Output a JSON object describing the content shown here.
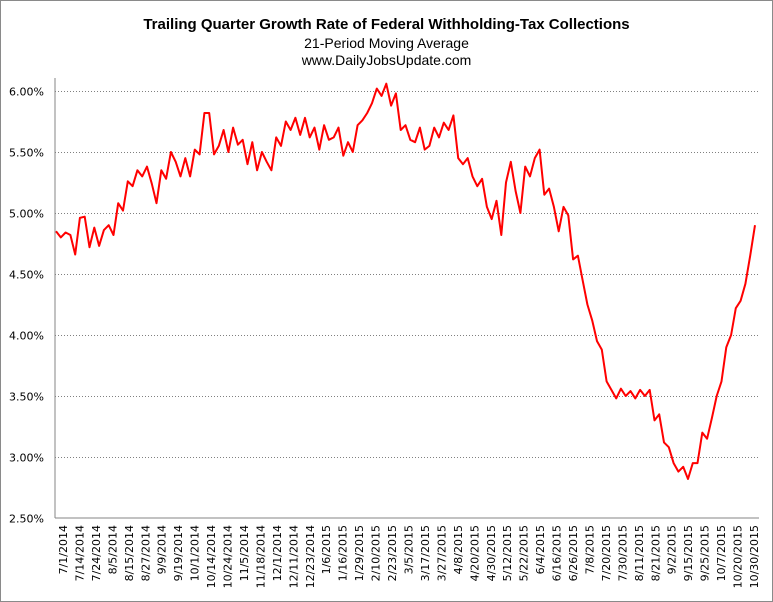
{
  "chart_data": {
    "type": "line",
    "title": "Trailing Quarter Growth Rate of Federal  Withholding-Tax Collections",
    "subtitle": "21-Period Moving Average",
    "source": "www.DailyJobsUpdate.com",
    "xlabel": "",
    "ylabel": "",
    "ylim": [
      2.5,
      6.0
    ],
    "y_ticks": [
      "2.50%",
      "3.00%",
      "3.50%",
      "4.00%",
      "4.50%",
      "5.00%",
      "5.50%",
      "6.00%"
    ],
    "y_tick_values": [
      2.5,
      3.0,
      3.5,
      4.0,
      4.5,
      5.0,
      5.5,
      6.0
    ],
    "grid": "horizontal-dotted",
    "x_ticks": [
      "7/1/2014",
      "7/14/2014",
      "7/24/2014",
      "8/5/2014",
      "8/15/2014",
      "8/27/2014",
      "9/9/2014",
      "9/19/2014",
      "10/1/2014",
      "10/14/2014",
      "10/24/2014",
      "11/5/2014",
      "11/18/2014",
      "12/1/2014",
      "12/11/2014",
      "12/23/2014",
      "1/6/2015",
      "1/16/2015",
      "1/29/2015",
      "2/10/2015",
      "2/23/2015",
      "3/5/2015",
      "3/17/2015",
      "3/27/2015",
      "4/8/2015",
      "4/20/2015",
      "4/30/2015",
      "5/12/2015",
      "5/22/2015",
      "6/4/2015",
      "6/16/2015",
      "6/26/2015",
      "7/8/2015",
      "7/20/2015",
      "7/30/2015",
      "8/11/2015",
      "8/21/2015",
      "9/2/2015",
      "9/15/2015",
      "9/25/2015",
      "10/7/2015",
      "10/20/2015",
      "10/30/2015"
    ],
    "series": [
      {
        "name": "21-Period Moving Average",
        "color": "#ff0000",
        "values": [
          4.85,
          4.8,
          4.84,
          4.82,
          4.66,
          4.96,
          4.97,
          4.72,
          4.88,
          4.73,
          4.86,
          4.9,
          4.82,
          5.08,
          5.02,
          5.26,
          5.22,
          5.35,
          5.3,
          5.38,
          5.24,
          5.08,
          5.35,
          5.28,
          5.5,
          5.42,
          5.3,
          5.45,
          5.3,
          5.52,
          5.48,
          5.82,
          5.82,
          5.48,
          5.55,
          5.68,
          5.5,
          5.7,
          5.56,
          5.6,
          5.4,
          5.58,
          5.35,
          5.5,
          5.42,
          5.35,
          5.62,
          5.55,
          5.75,
          5.68,
          5.78,
          5.64,
          5.78,
          5.62,
          5.7,
          5.52,
          5.72,
          5.6,
          5.62,
          5.7,
          5.47,
          5.58,
          5.5,
          5.72,
          5.76,
          5.82,
          5.9,
          6.02,
          5.96,
          6.06,
          5.88,
          5.98,
          5.68,
          5.72,
          5.6,
          5.58,
          5.7,
          5.52,
          5.55,
          5.7,
          5.62,
          5.74,
          5.68,
          5.8,
          5.45,
          5.4,
          5.45,
          5.3,
          5.22,
          5.28,
          5.05,
          4.95,
          5.1,
          4.82,
          5.25,
          5.42,
          5.18,
          5.0,
          5.38,
          5.3,
          5.45,
          5.52,
          5.15,
          5.2,
          5.05,
          4.85,
          5.05,
          4.98,
          4.62,
          4.65,
          4.45,
          4.25,
          4.12,
          3.95,
          3.88,
          3.62,
          3.55,
          3.48,
          3.56,
          3.5,
          3.54,
          3.48,
          3.55,
          3.5,
          3.55,
          3.3,
          3.35,
          3.12,
          3.08,
          2.95,
          2.88,
          2.92,
          2.82,
          2.95,
          2.95,
          3.2,
          3.15,
          3.32,
          3.5,
          3.62,
          3.9,
          4.0,
          4.22,
          4.28,
          4.42,
          4.65,
          4.9
        ]
      }
    ]
  }
}
